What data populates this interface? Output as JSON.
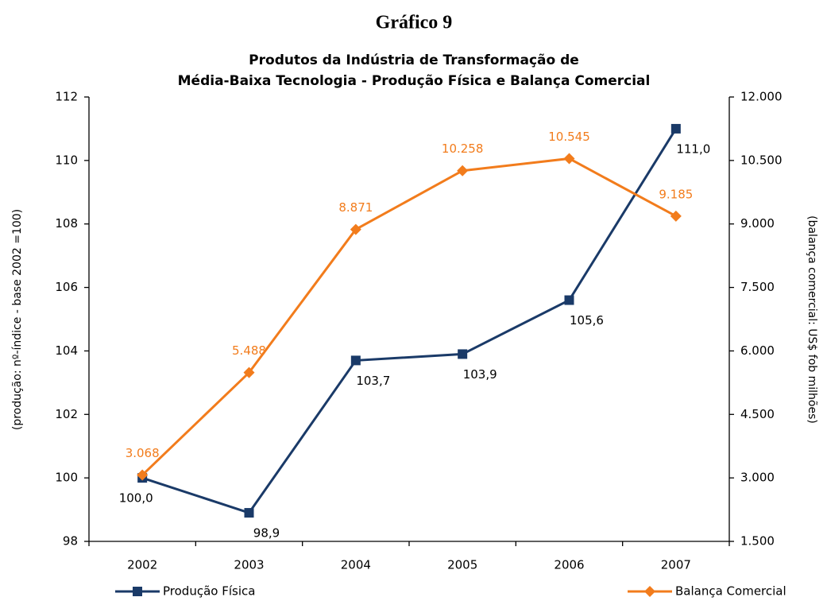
{
  "heading": "Gráfico 9",
  "chart_data": {
    "type": "line",
    "title": [
      "Produtos da Indústria de Transformação de",
      "Média-Baixa Tecnologia - Produção Física e Balança Comercial"
    ],
    "y_label": "(produção: nº-índice - base 2002 =100)",
    "y2_label": "(balança comercial: US$ fob milhões)",
    "categories": [
      "2002",
      "2003",
      "2004",
      "2005",
      "2006",
      "2007"
    ],
    "series": [
      {
        "name": "Produção Física",
        "color": "#1a3a68",
        "marker": "square",
        "values": [
          100.0,
          98.9,
          103.7,
          103.9,
          105.6,
          111.0
        ],
        "value_labels": [
          "100,0",
          "98,9",
          "103,7",
          "103,9",
          "105,6",
          "111,0"
        ]
      },
      {
        "name": "Balança Comercial",
        "color": "#f27c1c",
        "marker": "diamond",
        "axis": "y2",
        "values": [
          3068,
          5488,
          8871,
          10258,
          10545,
          9185
        ],
        "value_labels": [
          "3.068",
          "5.488",
          "8.871",
          "10.258",
          "10.545",
          "9.185"
        ]
      }
    ],
    "ylim": [
      98,
      112
    ],
    "yticks": [
      98,
      100,
      102,
      104,
      106,
      108,
      110,
      112
    ],
    "y2lim": [
      1500,
      12000
    ],
    "y2ticks": [
      {
        "value": 1500,
        "label": "1.500"
      },
      {
        "value": 3000,
        "label": "3.000"
      },
      {
        "value": 4500,
        "label": "4.500"
      },
      {
        "value": 6000,
        "label": "6.000"
      },
      {
        "value": 7500,
        "label": "7.500"
      },
      {
        "value": 9000,
        "label": "9.000"
      },
      {
        "value": 10500,
        "label": "10.500"
      },
      {
        "value": 12000,
        "label": "12.000"
      }
    ],
    "legend": "bottom"
  }
}
